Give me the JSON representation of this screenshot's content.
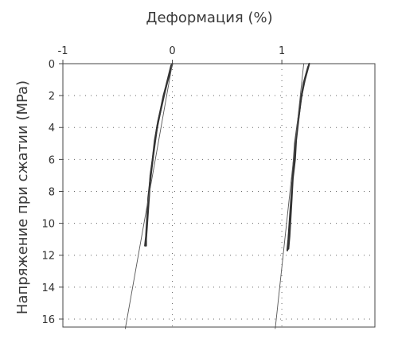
{
  "chart_data": {
    "type": "line",
    "title": "",
    "xlabel": "Деформация (%)",
    "ylabel": "Напряжение при сжатии (MPa)",
    "x_axis_position": "top",
    "y_inverted": true,
    "xlim": [
      -1.0,
      1.85
    ],
    "ylim": [
      0,
      16.5
    ],
    "x_ticks": [
      -1,
      0,
      1
    ],
    "x_tick_labels": [
      "-1",
      "0",
      "1"
    ],
    "y_ticks": [
      0,
      2,
      4,
      6,
      8,
      10,
      12,
      14,
      16
    ],
    "y_tick_labels": [
      "0",
      "2",
      "4",
      "6",
      "8",
      "10",
      "12",
      "14",
      "16"
    ],
    "grid": true,
    "grid_style": "dotted",
    "colors": {
      "thick": "#333333",
      "thin": "#555555",
      "grid": "#666666",
      "frame": "#444444"
    },
    "series": [
      {
        "style": "thick",
        "points": [
          [
            0.0,
            0
          ],
          [
            -0.04,
            1
          ],
          [
            -0.08,
            2
          ],
          [
            -0.11,
            3
          ],
          [
            -0.14,
            4
          ],
          [
            -0.16,
            5
          ],
          [
            -0.18,
            6
          ],
          [
            -0.2,
            7
          ],
          [
            -0.21,
            8
          ],
          [
            -0.22,
            9
          ],
          [
            -0.23,
            10
          ],
          [
            -0.24,
            11
          ],
          [
            -0.24,
            11.4
          ]
        ]
      },
      {
        "style": "thick",
        "points": [
          [
            -0.01,
            0.1
          ],
          [
            -0.05,
            1.2
          ],
          [
            -0.09,
            2.4
          ],
          [
            -0.13,
            3.6
          ],
          [
            -0.16,
            4.8
          ],
          [
            -0.18,
            6
          ],
          [
            -0.2,
            7.2
          ],
          [
            -0.22,
            8.4
          ],
          [
            -0.23,
            9.6
          ],
          [
            -0.24,
            10.8
          ],
          [
            -0.25,
            11.4
          ]
        ]
      },
      {
        "style": "thin",
        "points": [
          [
            0.0,
            0
          ],
          [
            -0.43,
            16.6
          ]
        ]
      },
      {
        "style": "thick",
        "points": [
          [
            1.25,
            0
          ],
          [
            1.21,
            1
          ],
          [
            1.18,
            2
          ],
          [
            1.16,
            3
          ],
          [
            1.14,
            4
          ],
          [
            1.12,
            5
          ],
          [
            1.11,
            6
          ],
          [
            1.1,
            7
          ],
          [
            1.09,
            8
          ],
          [
            1.08,
            9
          ],
          [
            1.07,
            10
          ],
          [
            1.06,
            11
          ],
          [
            1.05,
            11.7
          ]
        ]
      },
      {
        "style": "thick",
        "points": [
          [
            1.24,
            0.2
          ],
          [
            1.2,
            1.2
          ],
          [
            1.17,
            2.4
          ],
          [
            1.15,
            3.6
          ],
          [
            1.13,
            4.8
          ],
          [
            1.12,
            6
          ],
          [
            1.1,
            7.2
          ],
          [
            1.09,
            8.4
          ],
          [
            1.08,
            9.6
          ],
          [
            1.07,
            10.8
          ],
          [
            1.06,
            11.6
          ]
        ]
      },
      {
        "style": "thin",
        "points": [
          [
            1.2,
            0
          ],
          [
            0.94,
            16.6
          ]
        ]
      }
    ]
  }
}
